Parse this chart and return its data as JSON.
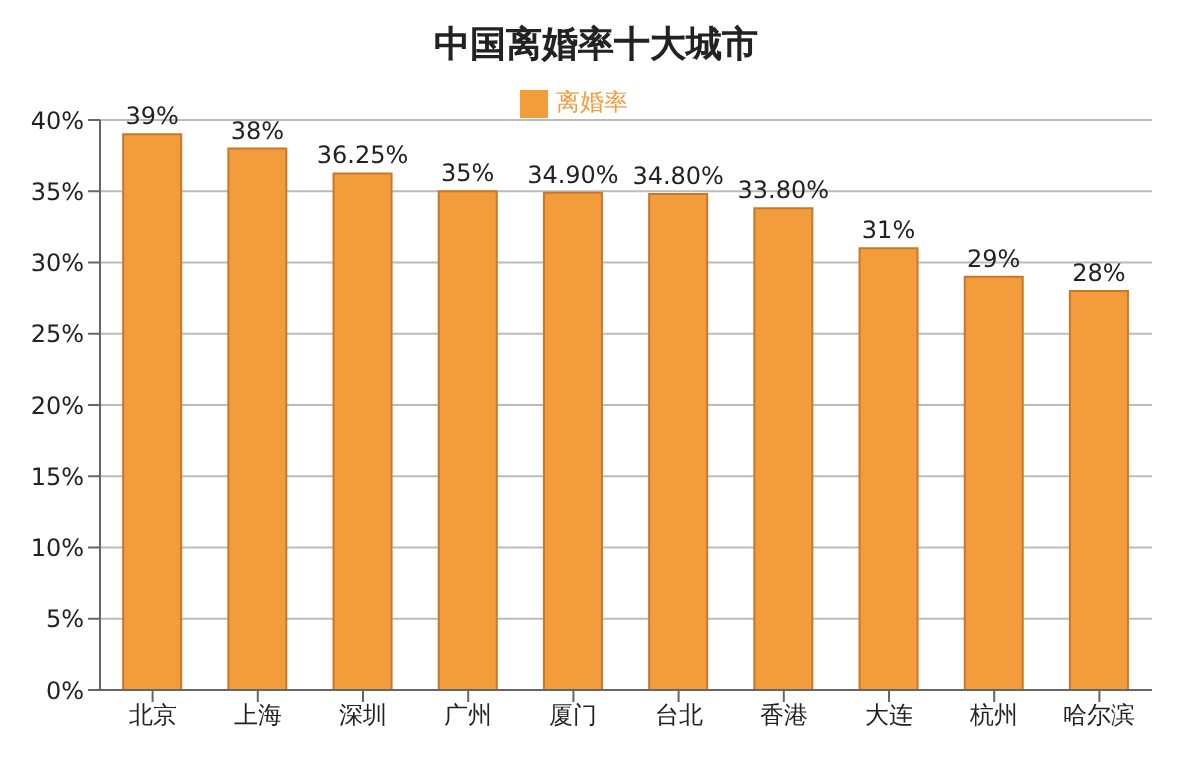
{
  "chart_data": {
    "type": "bar",
    "title": "中国离婚率十大城市",
    "categories": [
      "北京",
      "上海",
      "深圳",
      "广州",
      "厦门",
      "台北",
      "香港",
      "大连",
      "杭州",
      "哈尔滨"
    ],
    "series": [
      {
        "name": "离婚率",
        "color": "#f39c3c",
        "values": [
          39,
          38,
          36.25,
          35,
          34.9,
          34.8,
          33.8,
          31,
          29,
          28
        ],
        "value_labels": [
          "39%",
          "38%",
          "36.25%",
          "35%",
          "34.90%",
          "34.80%",
          "33.80%",
          "31%",
          "29%",
          "28%"
        ]
      }
    ],
    "ylim": [
      0,
      40
    ],
    "yticks": [
      {
        "value": 0,
        "label": "0%"
      },
      {
        "value": 5,
        "label": "5%"
      },
      {
        "value": 10,
        "label": "10%"
      },
      {
        "value": 15,
        "label": "15%"
      },
      {
        "value": 20,
        "label": "20%"
      },
      {
        "value": 25,
        "label": "25%"
      },
      {
        "value": 30,
        "label": "30%"
      },
      {
        "value": 35,
        "label": "35%"
      },
      {
        "value": 40,
        "label": "40%"
      }
    ],
    "grid": "y",
    "legend": "top"
  }
}
